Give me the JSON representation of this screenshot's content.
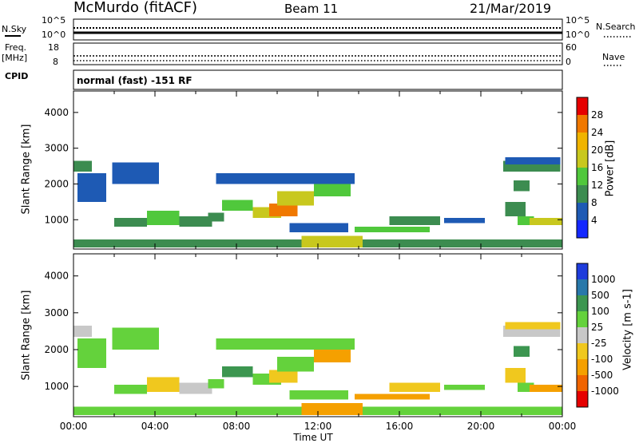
{
  "header": {
    "station": "McMurdo (fitACF)",
    "beam": "Beam 11",
    "date": "21/Mar/2019"
  },
  "noise_panel": {
    "left_label": "N.Sky",
    "right_label": "N.Search",
    "left_ticks": [
      "10^5",
      "10^0"
    ],
    "right_ticks": [
      "10^5",
      "10^0"
    ]
  },
  "freq_panel": {
    "left_label_line1": "Freq.",
    "left_label_line2": "[MHz]",
    "left_ticks": [
      "18",
      "8"
    ],
    "right_label": "Nave",
    "right_ticks": [
      "60",
      "0"
    ],
    "cpid_label": "CPID"
  },
  "cpid_panel": {
    "text": "normal (fast) -151 RF"
  },
  "chart_data": [
    {
      "type": "heatmap",
      "name": "power",
      "ylabel": "Slant Range [km]",
      "xlabel": "",
      "xlim": [
        0,
        24
      ],
      "ylim": [
        180,
        4600
      ],
      "y_ticks": [
        "1000",
        "2000",
        "3000",
        "4000"
      ],
      "colorbar_label": "Power [dB]",
      "colorbar_ticks": [
        "4",
        "8",
        "12",
        "16",
        "20",
        "24",
        "28"
      ],
      "colorbar_colors": [
        "#1428ff",
        "#1e5ab4",
        "#3c8c50",
        "#50c83c",
        "#c8c81e",
        "#f0b400",
        "#f07800",
        "#e60000"
      ],
      "bands": [
        {
          "start": 0.0,
          "end": 0.9,
          "range": [
            2350,
            2650
          ],
          "value": 9
        },
        {
          "start": 1.9,
          "end": 4.2,
          "range": [
            2000,
            2600
          ],
          "value": 6
        },
        {
          "start": 0.2,
          "end": 1.6,
          "range": [
            1500,
            2300
          ],
          "value": 6
        },
        {
          "start": 2.0,
          "end": 3.6,
          "range": [
            800,
            1050
          ],
          "value": 9
        },
        {
          "start": 3.6,
          "end": 5.2,
          "range": [
            850,
            1250
          ],
          "value": 15
        },
        {
          "start": 5.2,
          "end": 6.8,
          "range": [
            800,
            1100
          ],
          "value": 11
        },
        {
          "start": 6.6,
          "end": 7.4,
          "range": [
            950,
            1200
          ],
          "value": 10
        },
        {
          "start": 7.3,
          "end": 8.8,
          "range": [
            1250,
            1550
          ],
          "value": 15
        },
        {
          "start": 8.8,
          "end": 10.2,
          "range": [
            1050,
            1350
          ],
          "value": 17
        },
        {
          "start": 9.6,
          "end": 11.0,
          "range": [
            1100,
            1450
          ],
          "value": 24
        },
        {
          "start": 10.0,
          "end": 11.8,
          "range": [
            1400,
            1800
          ],
          "value": 16
        },
        {
          "start": 11.8,
          "end": 13.6,
          "range": [
            1650,
            2100
          ],
          "value": 15
        },
        {
          "start": 7.0,
          "end": 13.8,
          "range": [
            2000,
            2300
          ],
          "value": 7
        },
        {
          "start": 10.6,
          "end": 13.5,
          "range": [
            650,
            900
          ],
          "value": 7
        },
        {
          "start": 13.8,
          "end": 17.5,
          "range": [
            650,
            800
          ],
          "value": 14
        },
        {
          "start": 15.5,
          "end": 18.0,
          "range": [
            850,
            1100
          ],
          "value": 8
        },
        {
          "start": 18.2,
          "end": 20.2,
          "range": [
            900,
            1050
          ],
          "value": 7
        },
        {
          "start": 21.1,
          "end": 23.9,
          "range": [
            2350,
            2650
          ],
          "value": 9
        },
        {
          "start": 21.2,
          "end": 23.9,
          "range": [
            2550,
            2750
          ],
          "value": 6
        },
        {
          "start": 21.6,
          "end": 22.4,
          "range": [
            1800,
            2100
          ],
          "value": 8
        },
        {
          "start": 21.2,
          "end": 22.2,
          "range": [
            1100,
            1500
          ],
          "value": 9
        },
        {
          "start": 21.8,
          "end": 22.6,
          "range": [
            850,
            1100
          ],
          "value": 12
        },
        {
          "start": 22.4,
          "end": 24.0,
          "range": [
            850,
            1050
          ],
          "value": 17
        },
        {
          "start": 0.0,
          "end": 24.0,
          "range": [
            220,
            450
          ],
          "value": 9
        },
        {
          "start": 11.2,
          "end": 14.2,
          "range": [
            220,
            550
          ],
          "value": 18
        }
      ]
    },
    {
      "type": "heatmap",
      "name": "velocity",
      "ylabel": "Slant Range [km]",
      "xlabel": "Time UT",
      "xlim": [
        0,
        24
      ],
      "ylim": [
        180,
        4600
      ],
      "y_ticks": [
        "1000",
        "2000",
        "3000",
        "4000"
      ],
      "x_ticks": [
        "00:00",
        "04:00",
        "08:00",
        "12:00",
        "16:00",
        "20:00",
        "00:00"
      ],
      "colorbar_label": "Velocity [m s-1]",
      "colorbar_ticks": [
        "1000",
        "500",
        "100",
        "25",
        "-25",
        "-100",
        "-500",
        "-1000"
      ],
      "colorbar_colors": [
        "#1e3cdc",
        "#2878aa",
        "#3c9650",
        "#64d23c",
        "#c8c8c8",
        "#f0c81e",
        "#f5a000",
        "#f06400",
        "#e60000"
      ],
      "bands": [
        {
          "start": 0.0,
          "end": 0.9,
          "range": [
            2350,
            2650
          ],
          "value": 0
        },
        {
          "start": 1.9,
          "end": 4.2,
          "range": [
            2000,
            2600
          ],
          "value": 60
        },
        {
          "start": 0.2,
          "end": 1.6,
          "range": [
            1500,
            2300
          ],
          "value": 60
        },
        {
          "start": 2.0,
          "end": 3.6,
          "range": [
            800,
            1050
          ],
          "value": 80
        },
        {
          "start": 3.6,
          "end": 5.2,
          "range": [
            850,
            1250
          ],
          "value": -80
        },
        {
          "start": 5.2,
          "end": 6.8,
          "range": [
            800,
            1100
          ],
          "value": 0
        },
        {
          "start": 6.6,
          "end": 7.4,
          "range": [
            950,
            1200
          ],
          "value": 70
        },
        {
          "start": 7.3,
          "end": 8.8,
          "range": [
            1250,
            1550
          ],
          "value": 150
        },
        {
          "start": 8.8,
          "end": 10.2,
          "range": [
            1050,
            1350
          ],
          "value": 60
        },
        {
          "start": 9.6,
          "end": 11.0,
          "range": [
            1100,
            1450
          ],
          "value": -60
        },
        {
          "start": 10.0,
          "end": 11.8,
          "range": [
            1400,
            1800
          ],
          "value": 70
        },
        {
          "start": 11.8,
          "end": 13.6,
          "range": [
            1650,
            2100
          ],
          "value": -120
        },
        {
          "start": 7.0,
          "end": 13.8,
          "range": [
            2000,
            2300
          ],
          "value": 50
        },
        {
          "start": 10.6,
          "end": 13.5,
          "range": [
            650,
            900
          ],
          "value": 30
        },
        {
          "start": 13.8,
          "end": 17.5,
          "range": [
            650,
            800
          ],
          "value": -200
        },
        {
          "start": 15.5,
          "end": 18.0,
          "range": [
            850,
            1100
          ],
          "value": -60
        },
        {
          "start": 18.2,
          "end": 20.2,
          "range": [
            900,
            1050
          ],
          "value": 60
        },
        {
          "start": 21.1,
          "end": 23.9,
          "range": [
            2350,
            2650
          ],
          "value": 0
        },
        {
          "start": 21.2,
          "end": 23.9,
          "range": [
            2550,
            2750
          ],
          "value": -60
        },
        {
          "start": 21.6,
          "end": 22.4,
          "range": [
            1800,
            2100
          ],
          "value": 150
        },
        {
          "start": 21.2,
          "end": 22.2,
          "range": [
            1100,
            1500
          ],
          "value": -80
        },
        {
          "start": 21.8,
          "end": 22.6,
          "range": [
            850,
            1100
          ],
          "value": 40
        },
        {
          "start": 22.4,
          "end": 24.0,
          "range": [
            850,
            1050
          ],
          "value": -150
        },
        {
          "start": 0.0,
          "end": 24.0,
          "range": [
            220,
            450
          ],
          "value": 50
        },
        {
          "start": 11.2,
          "end": 14.2,
          "range": [
            220,
            550
          ],
          "value": -250
        }
      ]
    }
  ]
}
